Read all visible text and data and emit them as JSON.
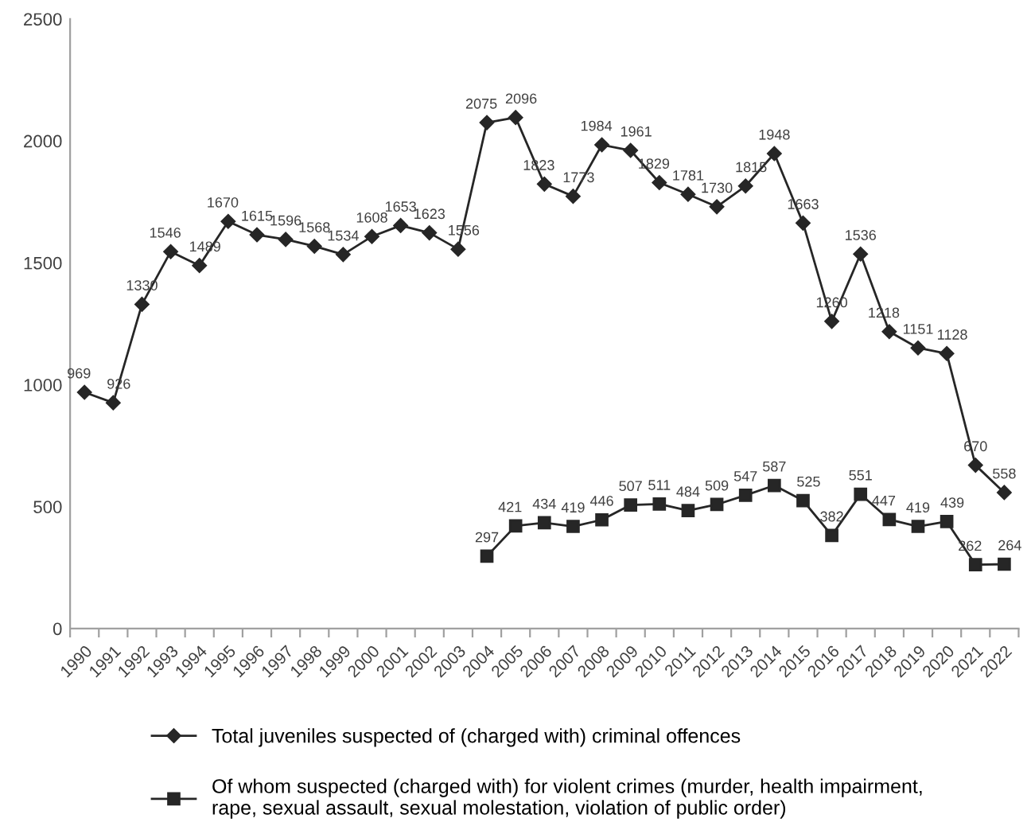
{
  "chart_data": {
    "type": "line",
    "categories": [
      "1990",
      "1991",
      "1992",
      "1993",
      "1994",
      "1995",
      "1996",
      "1997",
      "1998",
      "1999",
      "2000",
      "2001",
      "2002",
      "2003",
      "2004",
      "2005",
      "2006",
      "2007",
      "2008",
      "2009",
      "2010",
      "2011",
      "2012",
      "2013",
      "2014",
      "2015",
      "2016",
      "2017",
      "2018",
      "2019",
      "2020",
      "2021",
      "2022"
    ],
    "series": [
      {
        "name": "Total juveniles suspected of (charged with) criminal offences",
        "color": "#262626",
        "marker": "diamond",
        "values": [
          969,
          926,
          1330,
          1546,
          1489,
          1670,
          1615,
          1596,
          1568,
          1534,
          1608,
          1653,
          1623,
          1556,
          2075,
          2096,
          1823,
          1773,
          1984,
          1961,
          1829,
          1781,
          1730,
          1815,
          1948,
          1663,
          1260,
          1536,
          1218,
          1151,
          1128,
          670,
          558
        ]
      },
      {
        "name": "Of whom suspected (charged with) for violent crimes (murder, health impairment,\nrape, sexual assault, sexual molestation, violation of public order)",
        "color": "#262626",
        "marker": "square",
        "values": [
          null,
          null,
          null,
          null,
          null,
          null,
          null,
          null,
          null,
          null,
          null,
          null,
          null,
          null,
          297,
          421,
          434,
          419,
          446,
          507,
          511,
          484,
          509,
          547,
          587,
          525,
          382,
          551,
          447,
          419,
          439,
          262,
          264
        ]
      }
    ],
    "ylim": [
      0,
      2500
    ],
    "yticks": [
      0,
      500,
      1000,
      1500,
      2000,
      2500
    ],
    "grid": false,
    "legend": "bottom",
    "data_labels": true,
    "line_style": "solid"
  }
}
